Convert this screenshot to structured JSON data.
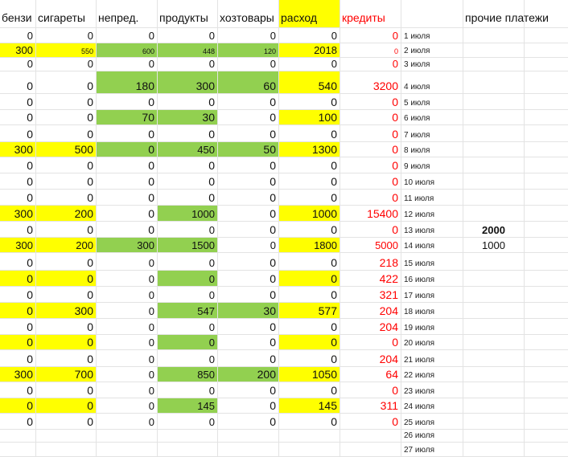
{
  "columns": [
    "бензи",
    "сигареты",
    "непред.",
    "продукты",
    "хозтовары",
    "расход",
    "кредиты",
    "",
    "",
    "прочие платежи"
  ],
  "rows": [
    {
      "cells": [
        "0",
        "0",
        "0",
        "0",
        "0",
        "0",
        "0"
      ],
      "date": "1 июля"
    },
    {
      "cells": [
        "300",
        "550",
        "600",
        "448",
        "120",
        "2018",
        "0"
      ],
      "date": "2 июля"
    },
    {
      "cells": [
        "0",
        "0",
        "0",
        "0",
        "0",
        "0",
        "0"
      ],
      "date": "3 июля"
    },
    {
      "cells": [
        "0",
        "0",
        "180",
        "300",
        "60",
        "540",
        "3200"
      ],
      "date": "4 июля"
    },
    {
      "cells": [
        "0",
        "0",
        "0",
        "0",
        "0",
        "0",
        "0"
      ],
      "date": "5 июля"
    },
    {
      "cells": [
        "0",
        "0",
        "70",
        "30",
        "0",
        "100",
        "0"
      ],
      "date": "6 июля"
    },
    {
      "cells": [
        "0",
        "0",
        "0",
        "0",
        "0",
        "0",
        "0"
      ],
      "date": "7 июля"
    },
    {
      "cells": [
        "300",
        "500",
        "0",
        "450",
        "50",
        "1300",
        "0"
      ],
      "date": "8 июля"
    },
    {
      "cells": [
        "0",
        "0",
        "0",
        "0",
        "0",
        "0",
        "0"
      ],
      "date": "9 июля"
    },
    {
      "cells": [
        "0",
        "0",
        "0",
        "0",
        "0",
        "0",
        "0"
      ],
      "date": "10 июля"
    },
    {
      "cells": [
        "0",
        "0",
        "0",
        "0",
        "0",
        "0",
        "0"
      ],
      "date": "11 июля"
    },
    {
      "cells": [
        "300",
        "200",
        "0",
        "1000",
        "0",
        "1000",
        "15400"
      ],
      "date": "12 июля"
    },
    {
      "cells": [
        "0",
        "0",
        "0",
        "0",
        "0",
        "0",
        "0"
      ],
      "date": "13 июля",
      "extra": "2000"
    },
    {
      "cells": [
        "300",
        "200",
        "300",
        "1500",
        "0",
        "1800",
        "5000"
      ],
      "date": "14 июля",
      "extra": "1000"
    },
    {
      "cells": [
        "0",
        "0",
        "0",
        "0",
        "0",
        "0",
        "218"
      ],
      "date": "15 июля"
    },
    {
      "cells": [
        "0",
        "0",
        "0",
        "0",
        "0",
        "0",
        "422"
      ],
      "date": "16 июля"
    },
    {
      "cells": [
        "0",
        "0",
        "0",
        "0",
        "0",
        "0",
        "321"
      ],
      "date": "17 июля"
    },
    {
      "cells": [
        "0",
        "300",
        "0",
        "547",
        "30",
        "577",
        "204"
      ],
      "date": "18 июля"
    },
    {
      "cells": [
        "0",
        "0",
        "0",
        "0",
        "0",
        "0",
        "204"
      ],
      "date": "19 июля"
    },
    {
      "cells": [
        "0",
        "0",
        "0",
        "0",
        "0",
        "0",
        "0"
      ],
      "date": "20 июля"
    },
    {
      "cells": [
        "0",
        "0",
        "0",
        "0",
        "0",
        "0",
        "204"
      ],
      "date": "21 июля"
    },
    {
      "cells": [
        "300",
        "700",
        "0",
        "850",
        "200",
        "1050",
        "64"
      ],
      "date": "22 июля"
    },
    {
      "cells": [
        "0",
        "0",
        "0",
        "0",
        "0",
        "0",
        "0"
      ],
      "date": "23 июля"
    },
    {
      "cells": [
        "0",
        "0",
        "0",
        "145",
        "0",
        "145",
        "311"
      ],
      "date": "24 июля"
    },
    {
      "cells": [
        "0",
        "0",
        "0",
        "0",
        "0",
        "0",
        "0"
      ],
      "date": "25 июля"
    },
    {
      "cells": [
        "",
        "",
        "",
        "",
        "",
        "",
        ""
      ],
      "date": "26 июля"
    },
    {
      "cells": [
        "",
        "",
        "",
        "",
        "",
        "",
        ""
      ],
      "date": "27 июля"
    }
  ],
  "colors": {
    "yellow": "#ffff00",
    "green": "#92d050",
    "red": "#ff0000",
    "grid": "#e3e3e3"
  }
}
